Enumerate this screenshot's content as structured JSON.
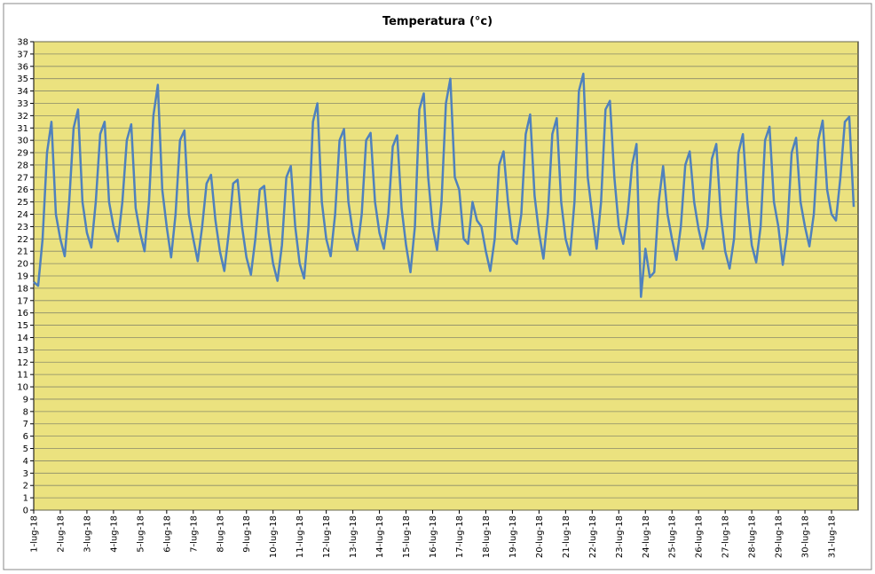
{
  "chart_data": {
    "type": "line",
    "title": "Temperatura (°c)",
    "categories": [
      "1-lug-18",
      null,
      null,
      null,
      null,
      null,
      "2-lug-18",
      null,
      null,
      null,
      null,
      null,
      "3-lug-18",
      null,
      null,
      null,
      null,
      null,
      "4-lug-18",
      null,
      null,
      null,
      null,
      null,
      "5-lug-18",
      null,
      null,
      null,
      null,
      null,
      "6-lug-18",
      null,
      null,
      null,
      null,
      null,
      "7-lug-18",
      null,
      null,
      null,
      null,
      null,
      "8-lug-18",
      null,
      null,
      null,
      null,
      null,
      "9-lug-18",
      null,
      null,
      null,
      null,
      null,
      "10-lug-18",
      null,
      null,
      null,
      null,
      null,
      "11-lug-18",
      null,
      null,
      null,
      null,
      null,
      "12-lug-18",
      null,
      null,
      null,
      null,
      null,
      "13-lug-18",
      null,
      null,
      null,
      null,
      null,
      "14-lug-18",
      null,
      null,
      null,
      null,
      null,
      "15-lug-18",
      null,
      null,
      null,
      null,
      null,
      "16-lug-18",
      null,
      null,
      null,
      null,
      null,
      "17-lug-18",
      null,
      null,
      null,
      null,
      null,
      "18-lug-18",
      null,
      null,
      null,
      null,
      null,
      "19-lug-18",
      null,
      null,
      null,
      null,
      null,
      "20-lug-18",
      null,
      null,
      null,
      null,
      null,
      "21-lug-18",
      null,
      null,
      null,
      null,
      null,
      "22-lug-18",
      null,
      null,
      null,
      null,
      null,
      "23-lug-18",
      null,
      null,
      null,
      null,
      null,
      "24-lug-18",
      null,
      null,
      null,
      null,
      null,
      "25-lug-18",
      null,
      null,
      null,
      null,
      null,
      "26-lug-18",
      null,
      null,
      null,
      null,
      null,
      "27-lug-18",
      null,
      null,
      null,
      null,
      null,
      "28-lug-18",
      null,
      null,
      null,
      null,
      null,
      "29-lug-18",
      null,
      null,
      null,
      null,
      null,
      "30-lug-18",
      null,
      null,
      null,
      null,
      null,
      "31-lug-18",
      null,
      null,
      null,
      null,
      null
    ],
    "series": [
      {
        "name": "Temperatura",
        "color": "#4f81bd",
        "values": [
          18.5,
          18.2,
          22,
          29,
          31.5,
          24,
          22,
          20.6,
          25,
          31,
          32.5,
          25,
          22.5,
          21.3,
          25,
          30.5,
          31.5,
          25,
          23,
          21.8,
          25,
          30,
          31.3,
          24.5,
          22.5,
          21,
          25,
          32,
          34.5,
          26,
          23,
          20.5,
          24,
          30,
          30.8,
          24,
          22,
          20.2,
          23,
          26.5,
          27.2,
          23.5,
          21,
          19.4,
          22.5,
          26.5,
          26.8,
          23,
          20.5,
          19.1,
          22,
          26,
          26.3,
          22.5,
          20,
          18.6,
          21.5,
          27,
          27.9,
          23,
          20,
          18.8,
          23,
          31.5,
          33,
          25,
          22,
          20.6,
          24,
          30,
          30.9,
          25,
          22.5,
          21.1,
          24,
          30,
          30.6,
          25,
          22.5,
          21.2,
          24,
          29.5,
          30.4,
          24.5,
          21.5,
          19.3,
          23,
          32.5,
          33.8,
          27,
          23,
          21.1,
          25,
          33,
          35,
          27,
          26,
          22,
          21.6,
          25,
          23.5,
          23,
          21,
          19.4,
          22,
          28,
          29.1,
          25,
          22,
          21.6,
          24,
          30.5,
          32.1,
          25.5,
          22.5,
          20.4,
          24,
          30.5,
          31.8,
          25,
          22,
          20.7,
          25,
          34,
          35.4,
          27,
          24,
          21.2,
          25,
          32.5,
          33.2,
          27,
          23,
          21.6,
          24,
          28,
          29.7,
          17.3,
          21.2,
          18.9,
          19.3,
          25,
          27.9,
          24,
          22,
          20.3,
          23,
          28,
          29.1,
          25,
          22.8,
          21.2,
          23,
          28.5,
          29.7,
          24,
          21,
          19.6,
          22,
          29,
          30.5,
          25,
          21.5,
          20.1,
          23,
          30,
          31.1,
          25,
          23,
          19.9,
          22.5,
          29,
          30.2,
          25,
          23,
          21.4,
          24,
          30,
          31.6,
          26,
          24,
          23.5,
          27,
          31.5,
          31.9,
          24.6
        ]
      }
    ],
    "ylim": [
      0,
      38
    ],
    "yticks": [
      0,
      1,
      2,
      3,
      4,
      5,
      6,
      7,
      8,
      9,
      10,
      11,
      12,
      13,
      14,
      15,
      16,
      17,
      18,
      19,
      20,
      21,
      22,
      23,
      24,
      25,
      26,
      27,
      28,
      29,
      30,
      31,
      32,
      33,
      34,
      35,
      36,
      37,
      38
    ],
    "grid": true,
    "background": "#ebe27f"
  }
}
